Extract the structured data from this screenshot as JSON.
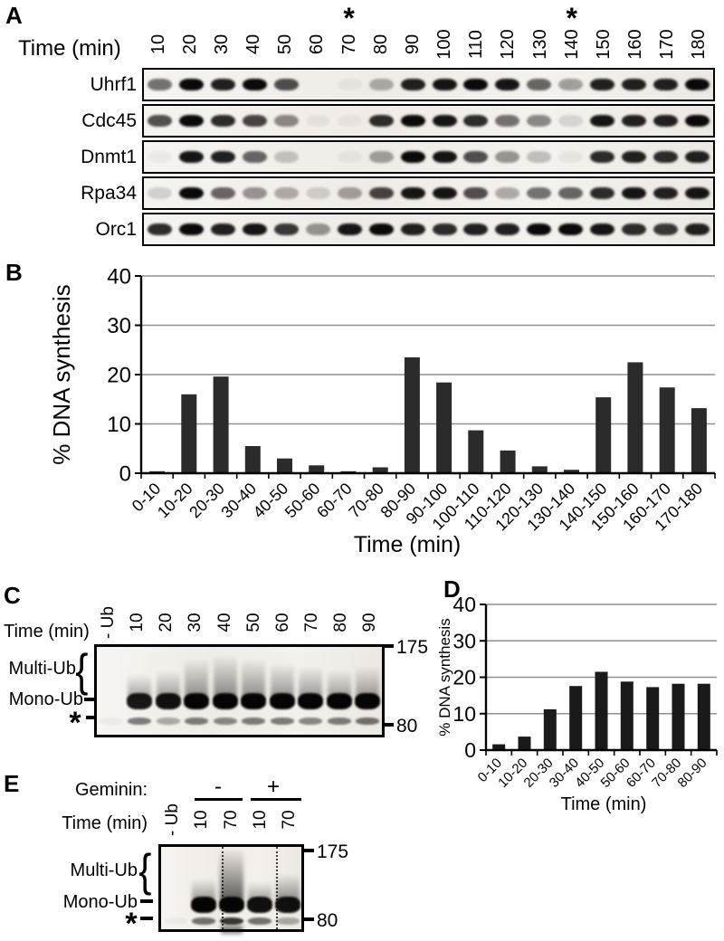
{
  "figure": {
    "background": "#ffffff",
    "ink": "#000000",
    "grid_color": "#909090"
  },
  "panelA": {
    "label": "A",
    "time_axis_label": "Time (min)",
    "asterisk": "*",
    "lane_labels": [
      "10",
      "20",
      "30",
      "40",
      "50",
      "60",
      "70",
      "80",
      "90",
      "100",
      "110",
      "120",
      "130",
      "140",
      "150",
      "160",
      "170",
      "180"
    ],
    "asterisk_lane_indices": [
      6,
      13
    ],
    "rows": [
      {
        "name": "Uhrf1",
        "bands": [
          0.55,
          1,
          0.9,
          1,
          0.7,
          0,
          0.04,
          0.3,
          0.9,
          0.95,
          1,
          0.95,
          0.6,
          0.35,
          0.9,
          0.9,
          0.9,
          1
        ]
      },
      {
        "name": "Cdc45",
        "bands": [
          0.7,
          1,
          0.85,
          0.75,
          0.45,
          0.05,
          0.04,
          0.85,
          1,
          0.95,
          0.85,
          0.55,
          0.45,
          0.12,
          0.95,
          0.9,
          0.9,
          1
        ]
      },
      {
        "name": "Dnmt1",
        "bands": [
          0.04,
          0.95,
          0.9,
          0.6,
          0.2,
          0,
          0.04,
          0.35,
          1,
          0.95,
          0.7,
          0.4,
          0.22,
          0.05,
          0.85,
          0.9,
          0.85,
          0.9
        ]
      },
      {
        "name": "Rpa34",
        "bands": [
          0.15,
          1,
          0.6,
          0.4,
          0.3,
          0.15,
          0.35,
          0.75,
          0.95,
          0.95,
          0.7,
          0.3,
          0.55,
          0.6,
          0.85,
          0.95,
          0.9,
          0.95
        ]
      },
      {
        "name": "Orc1",
        "bands": [
          0.85,
          1,
          0.9,
          0.95,
          0.8,
          0.4,
          0.95,
          1,
          0.9,
          0.85,
          0.9,
          0.9,
          1,
          1,
          0.95,
          0.85,
          0.8,
          0.9
        ]
      }
    ]
  },
  "panelB": {
    "label": "B"
  },
  "panelC": {
    "label": "C",
    "time_axis_label": "Time (min)",
    "lane_labels": [
      "- Ub",
      "10",
      "20",
      "30",
      "40",
      "50",
      "60",
      "70",
      "80",
      "90"
    ],
    "multi_label": "Multi-Ub",
    "mono_label": "Mono-Ub",
    "star_label": "*",
    "brace": "{",
    "mw_markers": [
      "175",
      "80"
    ],
    "lanes": [
      {
        "mono": 0,
        "multi": 0,
        "star": 0.04
      },
      {
        "mono": 0.92,
        "multi": 0.25,
        "star": 0.5
      },
      {
        "mono": 0.95,
        "multi": 0.3,
        "star": 0.3
      },
      {
        "mono": 1,
        "multi": 0.45,
        "star": 0.5
      },
      {
        "mono": 1,
        "multi": 0.5,
        "star": 0.45
      },
      {
        "mono": 1,
        "multi": 0.45,
        "star": 0.5
      },
      {
        "mono": 1,
        "multi": 0.4,
        "star": 0.5
      },
      {
        "mono": 1,
        "multi": 0.35,
        "star": 0.45
      },
      {
        "mono": 1,
        "multi": 0.3,
        "star": 0.5
      },
      {
        "mono": 1,
        "multi": 0.35,
        "star": 0.55
      }
    ]
  },
  "panelD": {
    "label": "D"
  },
  "panelE": {
    "label": "E",
    "geminin_label": "Geminin:",
    "minus_label": "-",
    "plus_label": "+",
    "time_axis_label": "Time (min)",
    "lane_labels": [
      "- Ub",
      "10",
      "70",
      "10",
      "70"
    ],
    "multi_label": "Multi-Ub",
    "mono_label": "Mono-Ub",
    "star_label": "*",
    "brace": "{",
    "mw_markers": [
      "175",
      "80"
    ],
    "lanes": [
      {
        "mono": 0,
        "multi": 0,
        "star": 0.03
      },
      {
        "mono": 1,
        "multi": 0.35,
        "star": 0.55
      },
      {
        "mono": 1,
        "multi": 0.95,
        "star": 0.8
      },
      {
        "mono": 0.95,
        "multi": 0.3,
        "star": 0.55
      },
      {
        "mono": 0.95,
        "multi": 0.45,
        "star": 0.3
      }
    ]
  },
  "chart_data": [
    {
      "id": "B",
      "type": "bar",
      "title": "",
      "categories": [
        "0-10",
        "10-20",
        "20-30",
        "30-40",
        "40-50",
        "50-60",
        "60-70",
        "70-80",
        "80-90",
        "90-100",
        "100-110",
        "110-120",
        "120-130",
        "130-140",
        "140-150",
        "150-160",
        "160-170",
        "170-180"
      ],
      "values": [
        0.4,
        16,
        19.6,
        5.5,
        3,
        1.6,
        0.4,
        1.2,
        23.5,
        18.4,
        8.7,
        4.6,
        1.4,
        0.7,
        15.4,
        22.5,
        17.4,
        13.2
      ],
      "xlabel": "Time (min)",
      "ylabel": "% DNA synthesis",
      "ylim": [
        0,
        40
      ],
      "yticks": [
        0,
        10,
        20,
        30,
        40
      ],
      "grid": true,
      "legend": false,
      "bar_color": "#2b2b2b"
    },
    {
      "id": "D",
      "type": "bar",
      "title": "",
      "categories": [
        "0-10",
        "10-20",
        "20-30",
        "30-40",
        "40-50",
        "50-60",
        "60-70",
        "70-80",
        "80-90"
      ],
      "values": [
        1.6,
        3.7,
        11.2,
        17.6,
        21.5,
        18.8,
        17.3,
        18.2,
        18.2
      ],
      "xlabel": "Time (min)",
      "ylabel": "% DNA synthesis",
      "ylim": [
        0,
        40
      ],
      "yticks": [
        0,
        10,
        20,
        30,
        40
      ],
      "grid": true,
      "legend": false,
      "bar_color": "#1a1a1a"
    }
  ]
}
